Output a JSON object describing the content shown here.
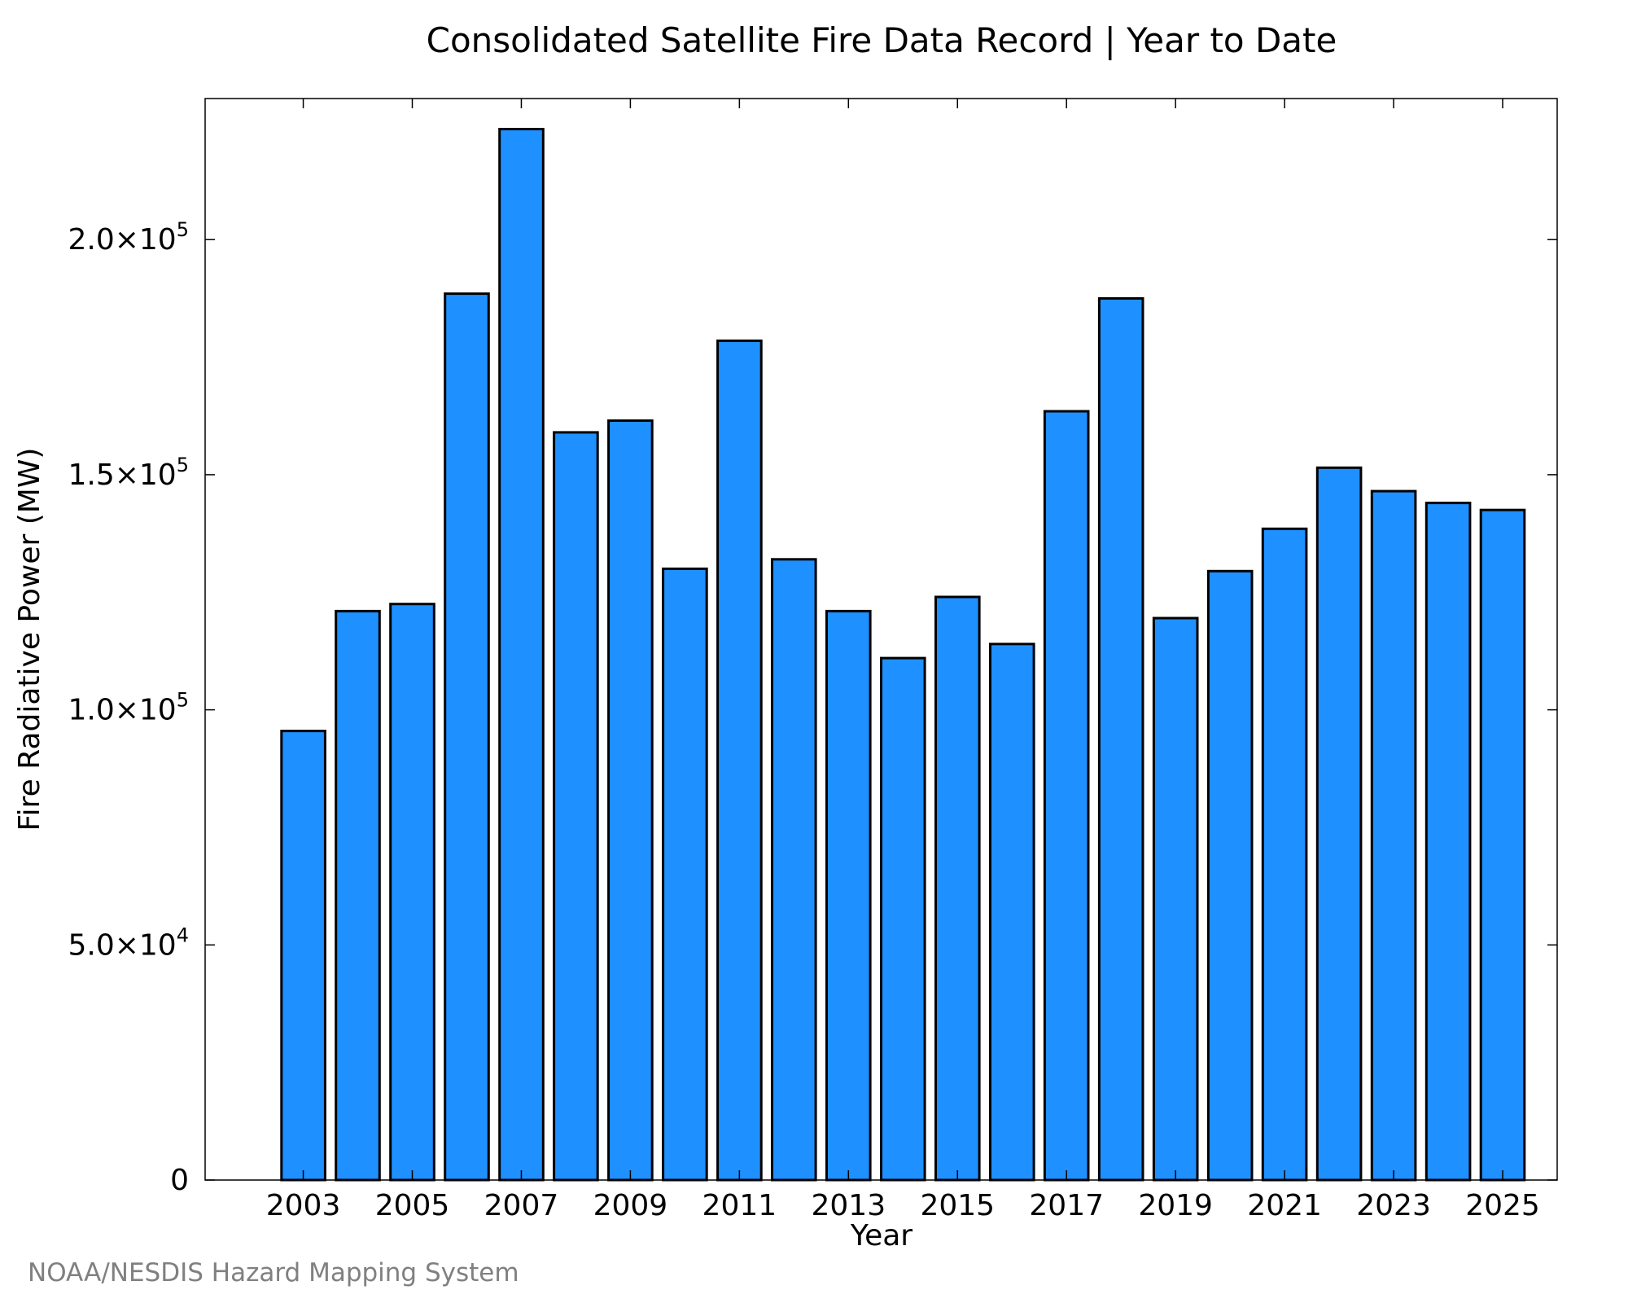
{
  "chart_data": {
    "type": "bar",
    "title": "Consolidated Satellite Fire Data Record | Year to Date",
    "xlabel": "Year",
    "ylabel": "Fire Radiative Power (MW)",
    "categories": [
      2003,
      2004,
      2005,
      2006,
      2007,
      2008,
      2009,
      2010,
      2011,
      2012,
      2013,
      2014,
      2015,
      2016,
      2017,
      2018,
      2019,
      2020,
      2021,
      2022,
      2023,
      2024,
      2025
    ],
    "values": [
      95500,
      121000,
      122500,
      188500,
      223500,
      159000,
      161500,
      130000,
      178500,
      132000,
      121000,
      111000,
      124000,
      114000,
      163500,
      187500,
      119500,
      129500,
      138500,
      151500,
      146500,
      144000,
      142500
    ],
    "ylim": [
      0,
      230000
    ],
    "xlim": [
      2001.2,
      2026
    ],
    "yticks": [
      {
        "value": 0,
        "mantissa": "0",
        "exponent": ""
      },
      {
        "value": 50000,
        "mantissa": "5.0×10",
        "exponent": "4"
      },
      {
        "value": 100000,
        "mantissa": "1.0×10",
        "exponent": "5"
      },
      {
        "value": 150000,
        "mantissa": "1.5×10",
        "exponent": "5"
      },
      {
        "value": 200000,
        "mantissa": "2.0×10",
        "exponent": "5"
      }
    ],
    "xticks": [
      2003,
      2005,
      2007,
      2009,
      2011,
      2013,
      2015,
      2017,
      2019,
      2021,
      2023,
      2025
    ],
    "bar_color": "#1E90FF",
    "edge_color": "#000000",
    "grid": false,
    "credit": "NOAA/NESDIS Hazard Mapping System"
  }
}
